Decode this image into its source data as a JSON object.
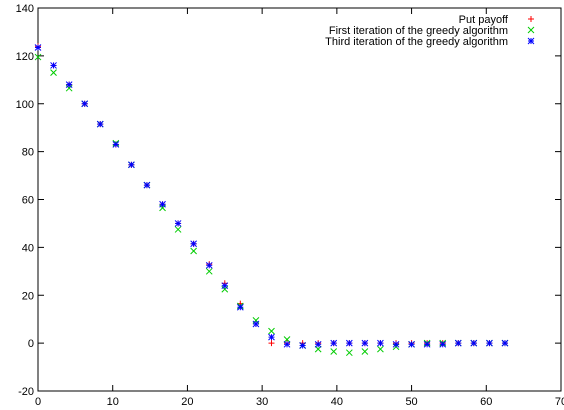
{
  "chart_data": {
    "type": "scatter",
    "title": "",
    "xlabel": "",
    "ylabel": "",
    "xlim": [
      0,
      70
    ],
    "ylim": [
      -20,
      140
    ],
    "xticks": [
      "0",
      "10",
      "20",
      "30",
      "40",
      "50",
      "60",
      "70"
    ],
    "yticks": [
      "-20",
      "0",
      "20",
      "40",
      "60",
      "80",
      "100",
      "120",
      "140"
    ],
    "grid": false,
    "legend_position": "top-right",
    "series": [
      {
        "name": "Put payoff",
        "marker": "plus",
        "color": "#ff0000",
        "x": [
          0,
          2.08,
          4.17,
          6.25,
          8.33,
          10.42,
          12.5,
          14.58,
          16.67,
          18.75,
          20.83,
          22.92,
          25,
          27.08,
          29.17,
          31.25,
          33.33,
          35.42,
          37.5,
          39.58,
          41.67,
          43.75,
          45.83,
          47.92,
          50,
          52.08,
          54.17,
          56.25,
          58.33,
          60.42,
          62.5
        ],
        "y": [
          124,
          116,
          108,
          100,
          91.5,
          83,
          74.5,
          66,
          58,
          50,
          41.5,
          33,
          25,
          16.5,
          8,
          0,
          0,
          0,
          0,
          0,
          0,
          0,
          0,
          0,
          0,
          0,
          0,
          0,
          0,
          0,
          0
        ]
      },
      {
        "name": "First iteration of the greedy algorithm",
        "marker": "cross",
        "color": "#00cc00",
        "x": [
          0,
          2.08,
          4.17,
          6.25,
          8.33,
          10.42,
          12.5,
          14.58,
          16.67,
          18.75,
          20.83,
          22.92,
          25,
          27.08,
          29.17,
          31.25,
          33.33,
          35.42,
          37.5,
          39.58,
          41.67,
          43.75,
          45.83,
          47.92,
          50,
          52.08,
          54.17,
          56.25,
          58.33,
          60.42,
          62.5
        ],
        "y": [
          119.5,
          113,
          106.5,
          100,
          91.5,
          83.5,
          74.5,
          66,
          56.5,
          47.5,
          38.5,
          30,
          22.5,
          15.5,
          9.5,
          5,
          1.5,
          -1,
          -2.5,
          -3.5,
          -4,
          -3.5,
          -2.5,
          -1.5,
          -0.5,
          0,
          0,
          0,
          0,
          0,
          0
        ]
      },
      {
        "name": "Third iteration of the greedy algorithm",
        "marker": "star",
        "color": "#0000ff",
        "x": [
          0,
          2.08,
          4.17,
          6.25,
          8.33,
          10.42,
          12.5,
          14.58,
          16.67,
          18.75,
          20.83,
          22.92,
          25,
          27.08,
          29.17,
          31.25,
          33.33,
          35.42,
          37.5,
          39.58,
          41.67,
          43.75,
          45.83,
          47.92,
          50,
          52.08,
          54.17,
          56.25,
          58.33,
          60.42,
          62.5
        ],
        "y": [
          123.5,
          116,
          108,
          100,
          91.5,
          83,
          74.5,
          66,
          58,
          50,
          41.5,
          32.5,
          24,
          15,
          8,
          2.5,
          -0.5,
          -1,
          -0.5,
          0,
          0,
          0,
          0,
          -0.5,
          -0.5,
          -0.5,
          -0.5,
          0,
          0,
          0,
          0
        ]
      }
    ]
  }
}
